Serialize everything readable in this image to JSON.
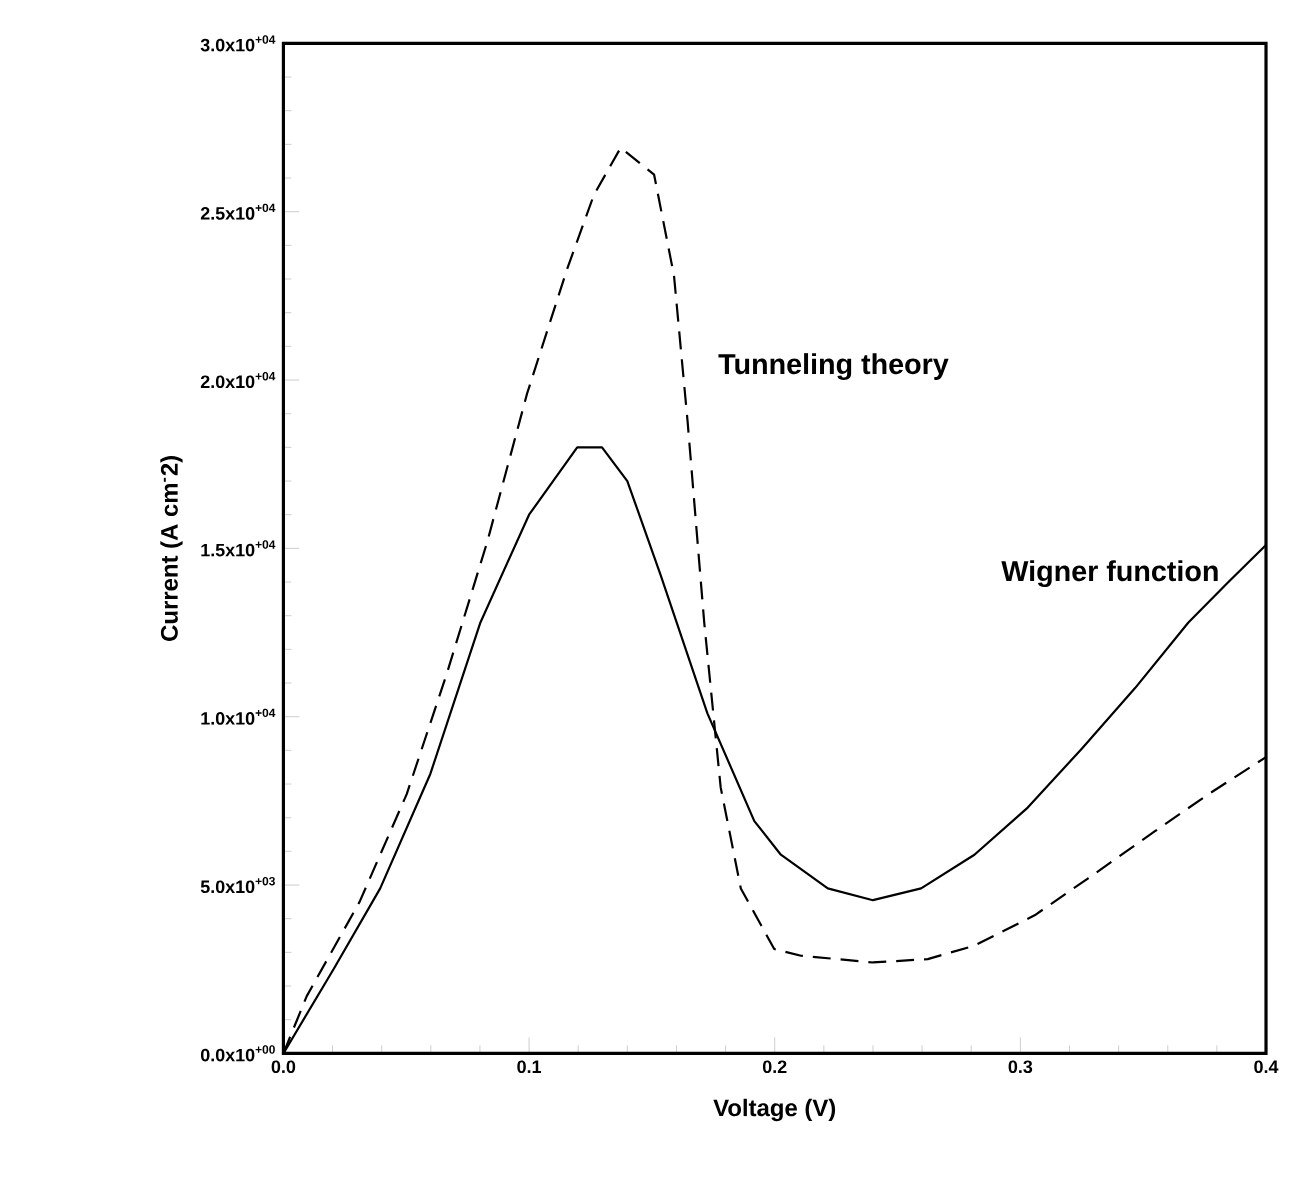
{
  "chart_data": {
    "type": "line",
    "xlabel": "Voltage (V)",
    "ylabel": "Current (A cm$^{-}$2)",
    "xlim": [
      0,
      0.4
    ],
    "ylim": [
      0,
      30000
    ],
    "xticks": [
      {
        "value": 0,
        "label": "0.0"
      },
      0.1,
      0.2,
      0.3,
      0.4
    ],
    "yticks": [
      {
        "value": 0,
        "label": "0.0x10$^{+00}$"
      },
      {
        "value": 5000,
        "label": "5.0x10$^{+03}$"
      },
      {
        "value": 10000,
        "label": "1.0x10$^{+04}$"
      },
      {
        "value": 15000,
        "label": "1.5x10$^{+04}$"
      },
      {
        "value": 20000,
        "label": "2.0x10$^{+04}$"
      },
      {
        "value": 25000,
        "label": "2.5x10$^{+04}$"
      },
      {
        "value": 30000,
        "label": "3.0x10$^{+04}$"
      }
    ],
    "grid": false,
    "legend": false,
    "marker": "none",
    "series": [
      {
        "name": "Tunneling theory",
        "color": "#000000",
        "line_style": "dashed",
        "x": [
          0,
          0.0095,
          0.031,
          0.0502,
          0.0666,
          0.083,
          0.0992,
          0.1155,
          0.1264,
          0.1373,
          0.1509,
          0.159,
          0.1645,
          0.1713,
          0.178,
          0.1862,
          0.1998,
          0.2107,
          0.24,
          0.2623,
          0.2813,
          0.3058,
          0.3276,
          0.3548,
          0.3766,
          0.4
        ],
        "values": [
          0,
          1700,
          4500,
          7700,
          11300,
          15200,
          19600,
          23300,
          25500,
          26900,
          26100,
          23100,
          18800,
          12800,
          7900,
          4900,
          3100,
          2900,
          2700,
          2800,
          3200,
          4100,
          5200,
          6600,
          7700,
          8800
        ]
      },
      {
        "name": "Wigner function",
        "color": "#000000",
        "line_style": "solid",
        "x": [
          0,
          0.0204,
          0.0394,
          0.0598,
          0.0802,
          0.1,
          0.1196,
          0.1297,
          0.14,
          0.1536,
          0.1726,
          0.1917,
          0.2025,
          0.2216,
          0.24,
          0.2596,
          0.2813,
          0.303,
          0.325,
          0.3467,
          0.3684,
          0.3847,
          0.4
        ],
        "values": [
          0,
          2500,
          4900,
          8300,
          12800,
          16000,
          18000,
          18000,
          17000,
          14200,
          10100,
          6900,
          5900,
          4900,
          4550,
          4900,
          5900,
          7300,
          9050,
          10850,
          12800,
          14000,
          15100
        ]
      }
    ]
  }
}
